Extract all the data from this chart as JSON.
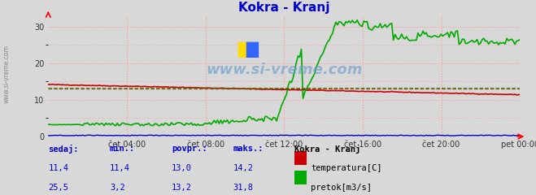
{
  "title": "Kokra - Kranj",
  "title_color": "#0000cc",
  "bg_color": "#d8d8d8",
  "plot_bg_color": "#d8d8d8",
  "grid_color": "#ff9999",
  "grid_style": ":",
  "ylim": [
    0,
    33
  ],
  "yticks": [
    0,
    10,
    20,
    30
  ],
  "watermark": "www.si-vreme.com",
  "temp_color": "#cc0000",
  "flow_color": "#00aa00",
  "level_color": "#0000cc",
  "x_tick_labels": [
    "čet 04:00",
    "čet 08:00",
    "čet 12:00",
    "čet 16:00",
    "čet 20:00",
    "pet 00:00"
  ],
  "legend_title": "Kokra - Kranj",
  "legend_items": [
    "temperatura[C]",
    "pretok[m3/s]"
  ],
  "legend_colors": [
    "#cc0000",
    "#00aa00"
  ],
  "table_headers": [
    "sedaj:",
    "min.:",
    "povpr.:",
    "maks.:"
  ],
  "table_data": [
    [
      "11,4",
      "11,4",
      "13,0",
      "14,2"
    ],
    [
      "25,5",
      "3,2",
      "13,2",
      "31,8"
    ]
  ],
  "table_color": "#0000cc",
  "temp_avg": 13.0,
  "flow_avg": 13.2
}
